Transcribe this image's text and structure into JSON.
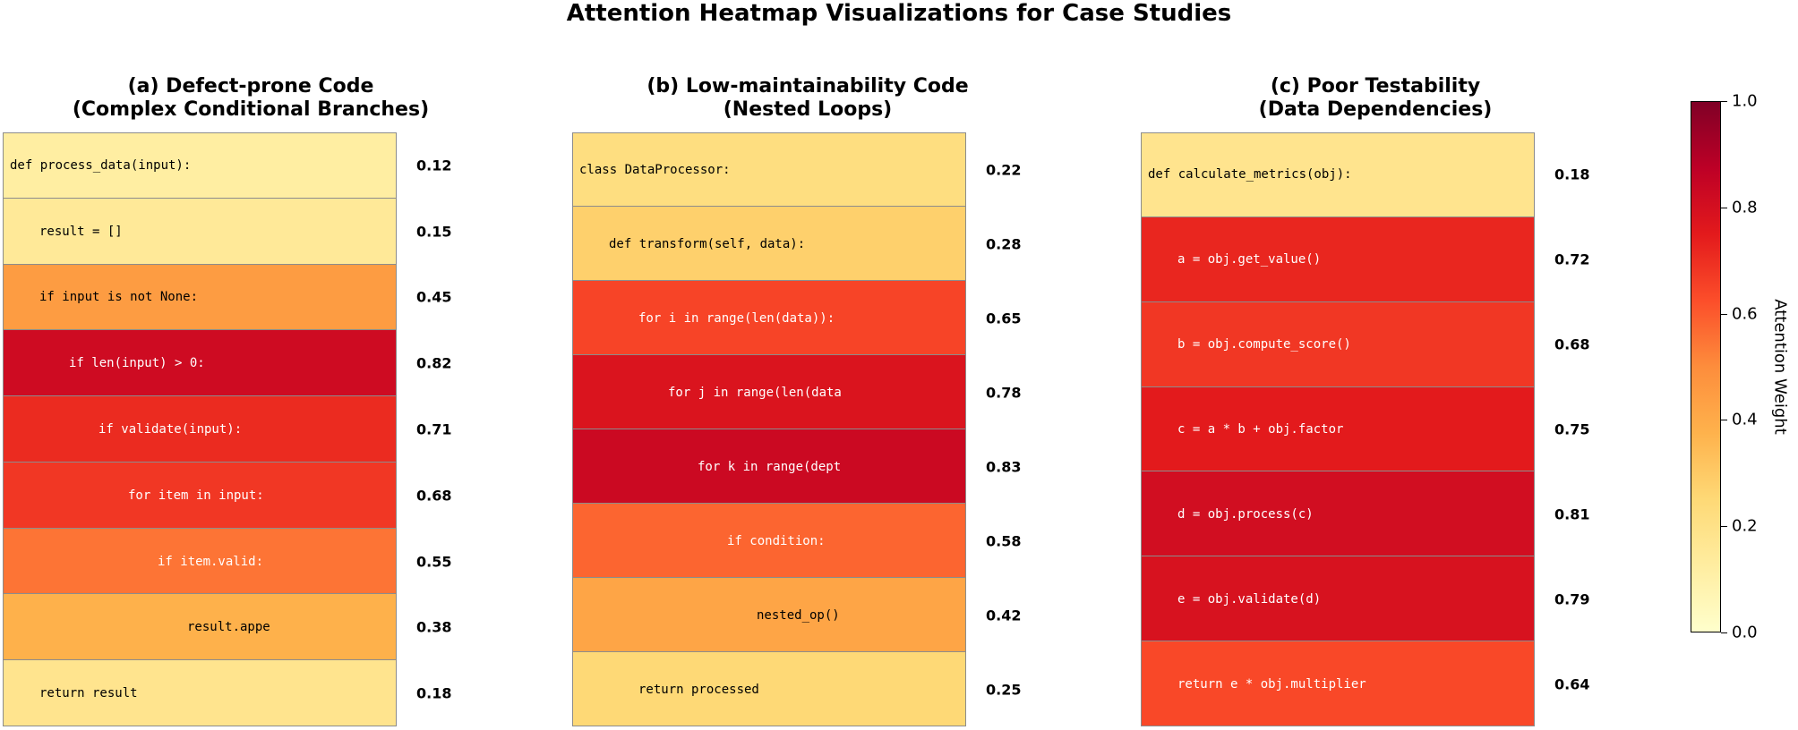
{
  "title": "Attention Heatmap Visualizations for Case Studies",
  "chart_data": [
    {
      "type": "heatmap",
      "title": "(a) Defect-prone Code\n(Complex Conditional Branches)",
      "title_lines": [
        "(a) Defect-prone Code",
        "(Complex Conditional Branches)"
      ],
      "rows": [
        {
          "code": "def process_data(input):",
          "indent": 0,
          "value": 0.12
        },
        {
          "code": "result = []",
          "indent": 1,
          "value": 0.15
        },
        {
          "code": "if input is not None:",
          "indent": 1,
          "value": 0.45
        },
        {
          "code": "if len(input) > 0:",
          "indent": 2,
          "value": 0.82
        },
        {
          "code": "if validate(input):",
          "indent": 3,
          "value": 0.71
        },
        {
          "code": "for item in input:",
          "indent": 4,
          "value": 0.68
        },
        {
          "code": "if item.valid:",
          "indent": 5,
          "value": 0.55
        },
        {
          "code": "result.appe",
          "indent": 6,
          "value": 0.38
        },
        {
          "code": "return result",
          "indent": 1,
          "value": 0.18
        }
      ]
    },
    {
      "type": "heatmap",
      "title": "(b) Low-maintainability Code\n(Nested Loops)",
      "title_lines": [
        "(b) Low-maintainability Code",
        "(Nested Loops)"
      ],
      "rows": [
        {
          "code": "class DataProcessor:",
          "indent": 0,
          "value": 0.22
        },
        {
          "code": "def transform(self, data):",
          "indent": 1,
          "value": 0.28
        },
        {
          "code": "for i in range(len(data)):",
          "indent": 2,
          "value": 0.65
        },
        {
          "code": "for j in range(len(data",
          "indent": 3,
          "value": 0.78
        },
        {
          "code": "for k in range(dept",
          "indent": 4,
          "value": 0.83
        },
        {
          "code": "if condition:",
          "indent": 5,
          "value": 0.58
        },
        {
          "code": "nested_op()",
          "indent": 6,
          "value": 0.42
        },
        {
          "code": "return processed",
          "indent": 2,
          "value": 0.25
        }
      ]
    },
    {
      "type": "heatmap",
      "title": "(c) Poor Testability\n(Data Dependencies)",
      "title_lines": [
        "(c) Poor Testability",
        "(Data Dependencies)"
      ],
      "rows": [
        {
          "code": "def calculate_metrics(obj):",
          "indent": 0,
          "value": 0.18
        },
        {
          "code": "a = obj.get_value()",
          "indent": 1,
          "value": 0.72
        },
        {
          "code": "b = obj.compute_score()",
          "indent": 1,
          "value": 0.68
        },
        {
          "code": "c = a * b + obj.factor",
          "indent": 1,
          "value": 0.75
        },
        {
          "code": "d = obj.process(c)",
          "indent": 1,
          "value": 0.81
        },
        {
          "code": "e = obj.validate(d)",
          "indent": 1,
          "value": 0.79
        },
        {
          "code": "return e * obj.multiplier",
          "indent": 1,
          "value": 0.64
        }
      ]
    }
  ],
  "colorbar": {
    "label": "Attention Weight",
    "range": [
      0,
      1
    ],
    "ticks": [
      "0.0",
      "0.2",
      "0.4",
      "0.6",
      "0.8",
      "1.0"
    ],
    "colormap": "YlOrRd",
    "colors": [
      "#ffffcc",
      "#ffeda0",
      "#fed976",
      "#feb24c",
      "#fd8d3c",
      "#fc4e2a",
      "#e31a1c",
      "#bd0026",
      "#800026"
    ]
  }
}
